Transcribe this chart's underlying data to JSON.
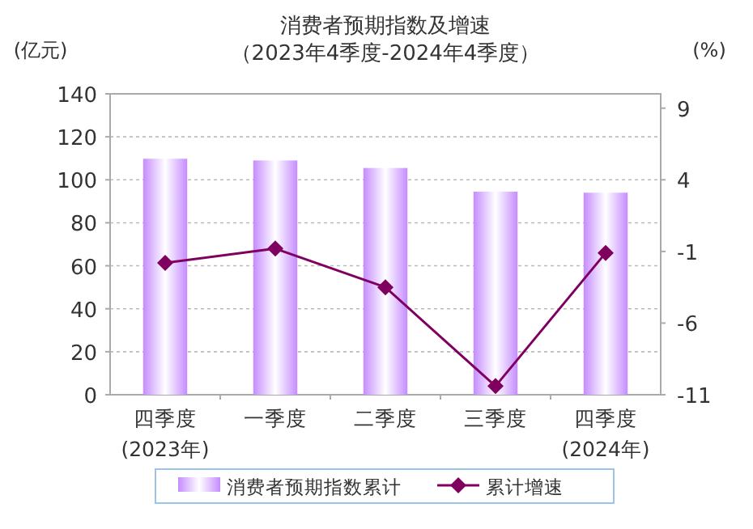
{
  "chart_data": {
    "type": "bar",
    "title": "消费者预期指数及增速",
    "subtitle": "（2023年4季度-2024年4季度）",
    "ylabel": "(亿元)",
    "y2label": "(%)",
    "categories": [
      "四季度\n(2023年)",
      "一季度",
      "二季度",
      "三季度",
      "四季度\n(2024年)"
    ],
    "series": [
      {
        "name": "消费者预期指数累计",
        "color": "#c58cff",
        "values": [
          109.8,
          109,
          105.5,
          94.5,
          94
        ]
      },
      {
        "name": "累计增速",
        "type": "line",
        "axis": "y2",
        "color": "#800060",
        "marker": "diamond",
        "values": [
          -1.8,
          -0.8,
          -3.5,
          -10.4,
          -1.1
        ]
      }
    ],
    "ylim": [
      0,
      140
    ],
    "yticks": [
      0,
      20,
      40,
      60,
      80,
      100,
      120,
      140
    ],
    "y2lim": [
      -11,
      10
    ],
    "y2ticks": [
      -11,
      -6,
      -1,
      4,
      9
    ],
    "grid": "y",
    "legend": "bottom"
  }
}
